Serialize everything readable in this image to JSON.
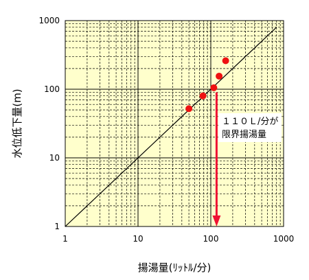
{
  "chart_data": {
    "type": "scatter",
    "xscale": "log",
    "yscale": "log",
    "xlim": [
      1,
      1000
    ],
    "ylim": [
      1,
      1000
    ],
    "xlabel": "揚湯量(ﾘｯﾄﾙ/分)",
    "ylabel": "水位低下量(m)",
    "xtick_labels": [
      "1",
      "10",
      "100",
      "1000"
    ],
    "ytick_labels": [
      "1",
      "10",
      "100",
      "1000"
    ],
    "grid": true,
    "background_color": "#ffffcc",
    "grid_color": "#000000",
    "point_color": "#ee1111",
    "points": [
      {
        "x": 50,
        "y": 52
      },
      {
        "x": 78,
        "y": 80
      },
      {
        "x": 110,
        "y": 105
      },
      {
        "x": 130,
        "y": 155
      },
      {
        "x": 160,
        "y": 260
      }
    ],
    "reference_line": {
      "x": [
        1,
        800
      ],
      "y": [
        1,
        800
      ],
      "color": "#000000"
    },
    "limit_arrow": {
      "x": 120,
      "y_from": 90,
      "y_to": 1,
      "color": "#ee1133"
    },
    "annotation": {
      "lines": [
        "１１０Ｌ/分が",
        "限界揚湯量"
      ]
    }
  }
}
